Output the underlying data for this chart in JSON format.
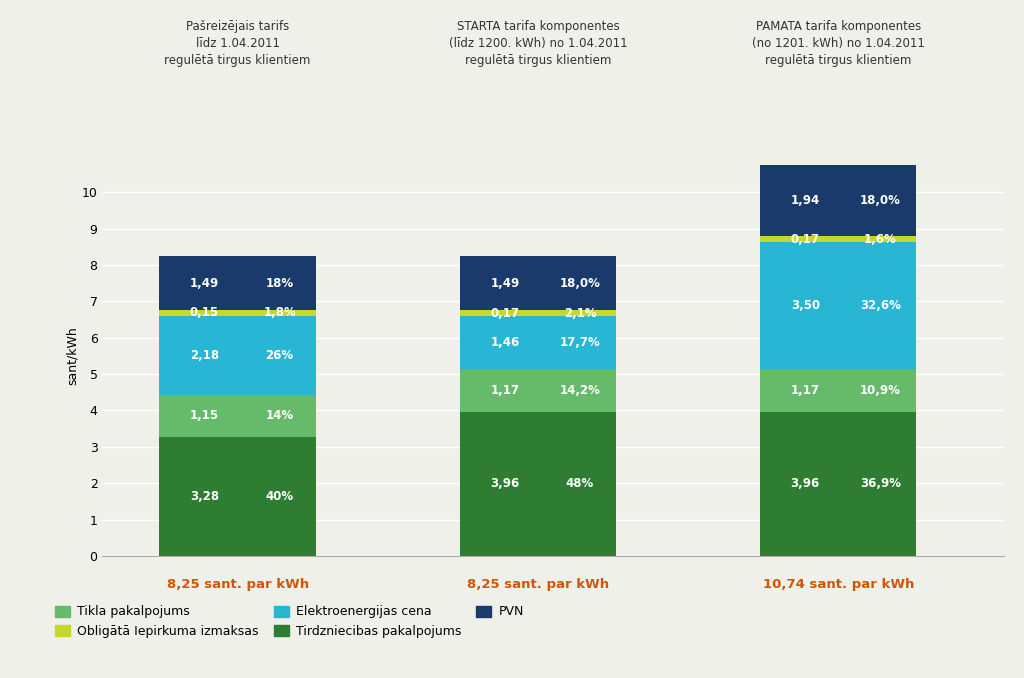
{
  "bar_titles": [
    "Pašreizējais tarifs\nlīdz 1.04.2011\nregulētā tirgus klientiem",
    "STARTA tarifa komponentes\n(līdz 1200. kWh) no 1.04.2011\nregulētā tirgus klientiem",
    "PAMATA tarifa komponentes\n(no 1201. kWh) no 1.04.2011\nregulētā tirgus klientiem"
  ],
  "bar_totals": [
    "8,25 sant. par kWh",
    "8,25 sant. par kWh",
    "10,74 sant. par kWh"
  ],
  "ylabel": "sant/kWh",
  "ylim": [
    0,
    11
  ],
  "yticks": [
    0,
    1,
    2,
    3,
    4,
    5,
    6,
    7,
    8,
    9,
    10
  ],
  "segments": {
    "Tirdzniecibas pakalpojums": {
      "values": [
        3.28,
        3.96,
        3.96
      ],
      "color": "#2e7d32",
      "labels": [
        [
          "3,28",
          "40%"
        ],
        [
          "3,96",
          "48%"
        ],
        [
          "3,96",
          "36,9%"
        ]
      ]
    },
    "Tikla pakalpojums": {
      "values": [
        1.15,
        1.17,
        1.17
      ],
      "color": "#66bb6a",
      "labels": [
        [
          "1,15",
          "14%"
        ],
        [
          "1,17",
          "14,2%"
        ],
        [
          "1,17",
          "10,9%"
        ]
      ]
    },
    "Elektroenergijas cena": {
      "values": [
        2.18,
        1.46,
        3.5
      ],
      "color": "#29b6d4",
      "labels": [
        [
          "2,18",
          "26%"
        ],
        [
          "1,46",
          "17,7%"
        ],
        [
          "3,50",
          "32,6%"
        ]
      ]
    },
    "Obligata Iepirkuma izmaksas": {
      "values": [
        0.15,
        0.17,
        0.17
      ],
      "color": "#c6d829",
      "labels": [
        [
          "0,15",
          "1,8%"
        ],
        [
          "0,17",
          "2,1%"
        ],
        [
          "0,17",
          "1,6%"
        ]
      ]
    },
    "PVN": {
      "values": [
        1.49,
        1.49,
        1.94
      ],
      "color": "#1a3a6b",
      "labels": [
        [
          "1,49",
          "18%"
        ],
        [
          "1,49",
          "18,0%"
        ],
        [
          "1,94",
          "18,0%"
        ]
      ]
    }
  },
  "legend_entries": [
    {
      "label": "Tikla pakalpojums",
      "color": "#66bb6a"
    },
    {
      "label": "Obligātā Iepirkuma izmaksas",
      "color": "#c6d829"
    },
    {
      "label": "Elektroenergijas cena",
      "color": "#29b6d4"
    },
    {
      "label": "Tirdzniecibas pakalpojums",
      "color": "#2e7d32"
    },
    {
      "label": "PVN",
      "color": "#1a3a6b"
    }
  ],
  "bar_totals_color": "#d45500",
  "background_color": "#f0f0ea",
  "bar_width": 0.52,
  "bar_positions": [
    1,
    2,
    3
  ]
}
